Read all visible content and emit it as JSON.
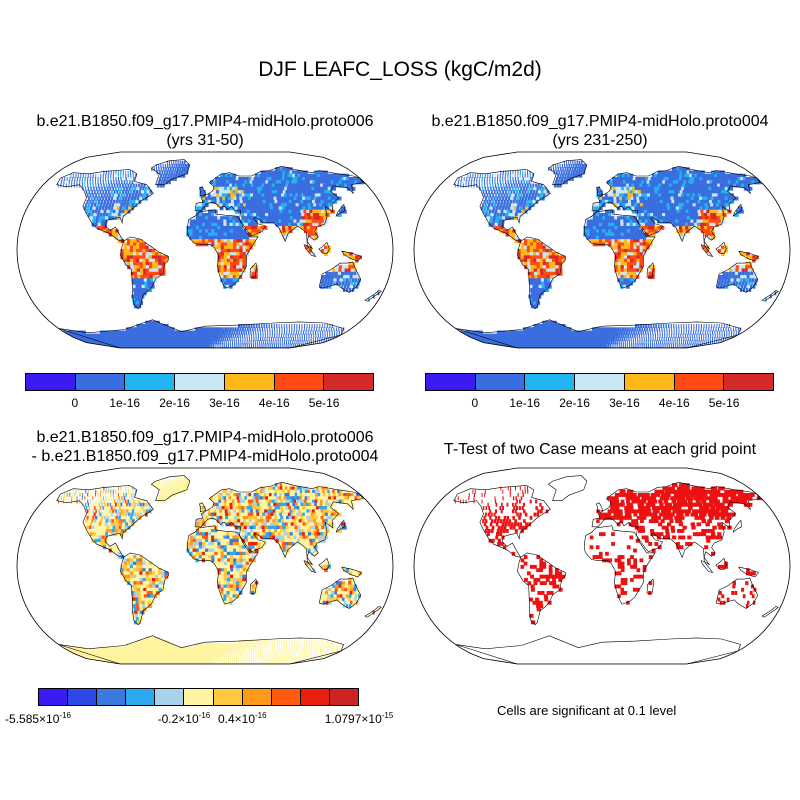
{
  "figure": {
    "title": "DJF LEAFC_LOSS (kgC/m2d)",
    "panel1": {
      "title_line1": "b.e21.B1850.f09_g17.PMIP4-midHolo.proto006",
      "title_line2": "(yrs 31-50)"
    },
    "panel2": {
      "title_line1": "b.e21.B1850.f09_g17.PMIP4-midHolo.proto004",
      "title_line2": "(yrs 231-250)"
    },
    "panel3": {
      "title_line1": "b.e21.B1850.f09_g17.PMIP4-midHolo.proto006",
      "title_line2": "- b.e21.B1850.f09_g17.PMIP4-midHolo.proto004"
    },
    "panel4": {
      "title_line1": "T-Test of two Case means at each grid point",
      "note": "Cells are significant at 0.1 level"
    }
  },
  "colorbars": {
    "top": {
      "colors": [
        "#3b1cf0",
        "#3a6ee0",
        "#22b4f0",
        "#c8e6f5",
        "#ffb818",
        "#ff4a14",
        "#d42a2a"
      ],
      "labels": [
        "0",
        "1e-16",
        "2e-16",
        "3e-16",
        "4e-16",
        "5e-16"
      ]
    },
    "diff": {
      "colors": [
        "#3b1cf0",
        "#2e48e6",
        "#3a7ae0",
        "#2fa8f2",
        "#a6d2ec",
        "#fff4a0",
        "#ffc840",
        "#ff9a1c",
        "#ff5a0e",
        "#e8200e",
        "#cc2424"
      ],
      "labels": [
        {
          "mantissa": "-5.585",
          "exp": "-16"
        },
        {
          "mantissa": "-0.2",
          "exp": "-16"
        },
        {
          "mantissa": "0.4",
          "exp": "-16"
        },
        {
          "mantissa": "1.0797",
          "exp": "-15"
        }
      ]
    }
  },
  "map_colors": {
    "ocean": "#ffffff",
    "land_base_case": "#3a6ee0",
    "land_base_diff": "#fff4a0",
    "significant": "#ee1111",
    "coast": "#000000"
  }
}
